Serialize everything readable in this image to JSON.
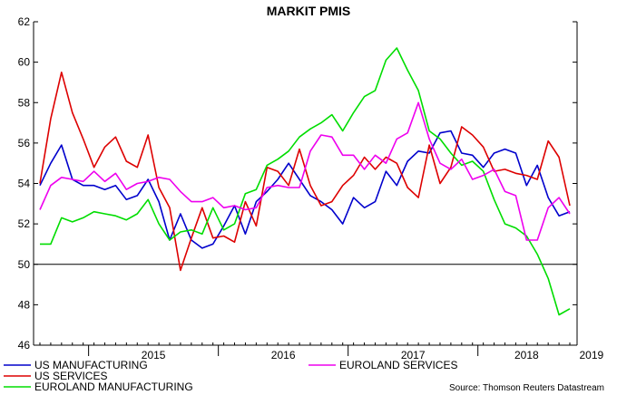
{
  "chart_data": {
    "type": "line",
    "title": "MARKIT PMIS",
    "source": "Source: Thomson Reuters Datastream",
    "ylim": [
      46,
      62
    ],
    "yticks": [
      46,
      48,
      50,
      52,
      54,
      56,
      58,
      60,
      62
    ],
    "x_start": "2014-08",
    "xticks": [
      "2015",
      "2016",
      "2017",
      "2018",
      "2019"
    ],
    "reference_line": 50,
    "grid": false,
    "legend": "bottom",
    "series": [
      {
        "name": "US MANUFACTURING",
        "color": "#0000cc",
        "values": [
          53.9,
          55.0,
          55.9,
          54.2,
          53.9,
          53.9,
          53.7,
          53.9,
          53.2,
          53.4,
          54.2,
          53.1,
          51.2,
          52.5,
          51.2,
          50.8,
          51.0,
          51.9,
          52.9,
          51.5,
          53.1,
          53.6,
          54.2,
          55.0,
          54.2,
          53.4,
          53.1,
          52.7,
          52.0,
          53.3,
          52.8,
          53.1,
          54.6,
          53.9,
          55.1,
          55.6,
          55.5,
          56.5,
          56.6,
          55.5,
          55.4,
          54.8,
          55.5,
          55.7,
          55.5,
          53.9,
          54.9,
          53.3,
          52.4,
          52.6
        ]
      },
      {
        "name": "US SERVICES",
        "color": "#dd0000",
        "values": [
          54.0,
          57.2,
          59.5,
          57.5,
          56.2,
          54.8,
          55.8,
          56.3,
          55.1,
          54.8,
          56.4,
          53.8,
          52.8,
          49.7,
          51.3,
          52.8,
          51.3,
          51.4,
          51.1,
          53.1,
          51.9,
          54.8,
          54.6,
          53.9,
          55.7,
          53.9,
          52.9,
          53.1,
          53.9,
          54.4,
          55.3,
          54.7,
          55.3,
          55.0,
          53.8,
          53.3,
          55.9,
          54.0,
          54.8,
          56.8,
          56.4,
          55.8,
          54.6,
          54.7,
          54.5,
          54.4,
          54.2,
          56.1,
          55.3,
          52.9
        ]
      },
      {
        "name": "EUROLAND MANUFACTURING",
        "color": "#00dd00",
        "values": [
          51.0,
          51.0,
          52.3,
          52.1,
          52.3,
          52.6,
          52.5,
          52.4,
          52.2,
          52.5,
          53.2,
          52.0,
          51.2,
          51.6,
          51.7,
          51.5,
          52.8,
          51.7,
          52.0,
          53.5,
          53.7,
          54.9,
          55.2,
          55.6,
          56.3,
          56.7,
          57.0,
          57.4,
          56.6,
          57.5,
          58.3,
          58.6,
          60.1,
          60.7,
          59.6,
          58.6,
          56.6,
          56.2,
          55.5,
          54.9,
          55.1,
          54.6,
          53.2,
          52.0,
          51.8,
          51.4,
          50.5,
          49.3,
          47.5,
          47.8
        ]
      },
      {
        "name": "EUROLAND SERVICES",
        "color": "#ee00ee",
        "values": [
          52.7,
          53.9,
          54.3,
          54.2,
          54.1,
          54.6,
          54.1,
          54.5,
          53.7,
          54.0,
          54.1,
          54.3,
          54.2,
          53.6,
          53.1,
          53.1,
          53.3,
          52.8,
          52.9,
          52.7,
          52.8,
          53.8,
          53.9,
          53.8,
          53.8,
          55.6,
          56.4,
          56.3,
          55.4,
          55.4,
          54.7,
          55.4,
          55.0,
          56.2,
          56.5,
          58.0,
          56.2,
          55.0,
          54.7,
          55.2,
          54.2,
          54.4,
          54.7,
          53.6,
          53.4,
          51.2,
          51.2,
          52.8,
          53.3,
          52.5
        ]
      }
    ]
  }
}
